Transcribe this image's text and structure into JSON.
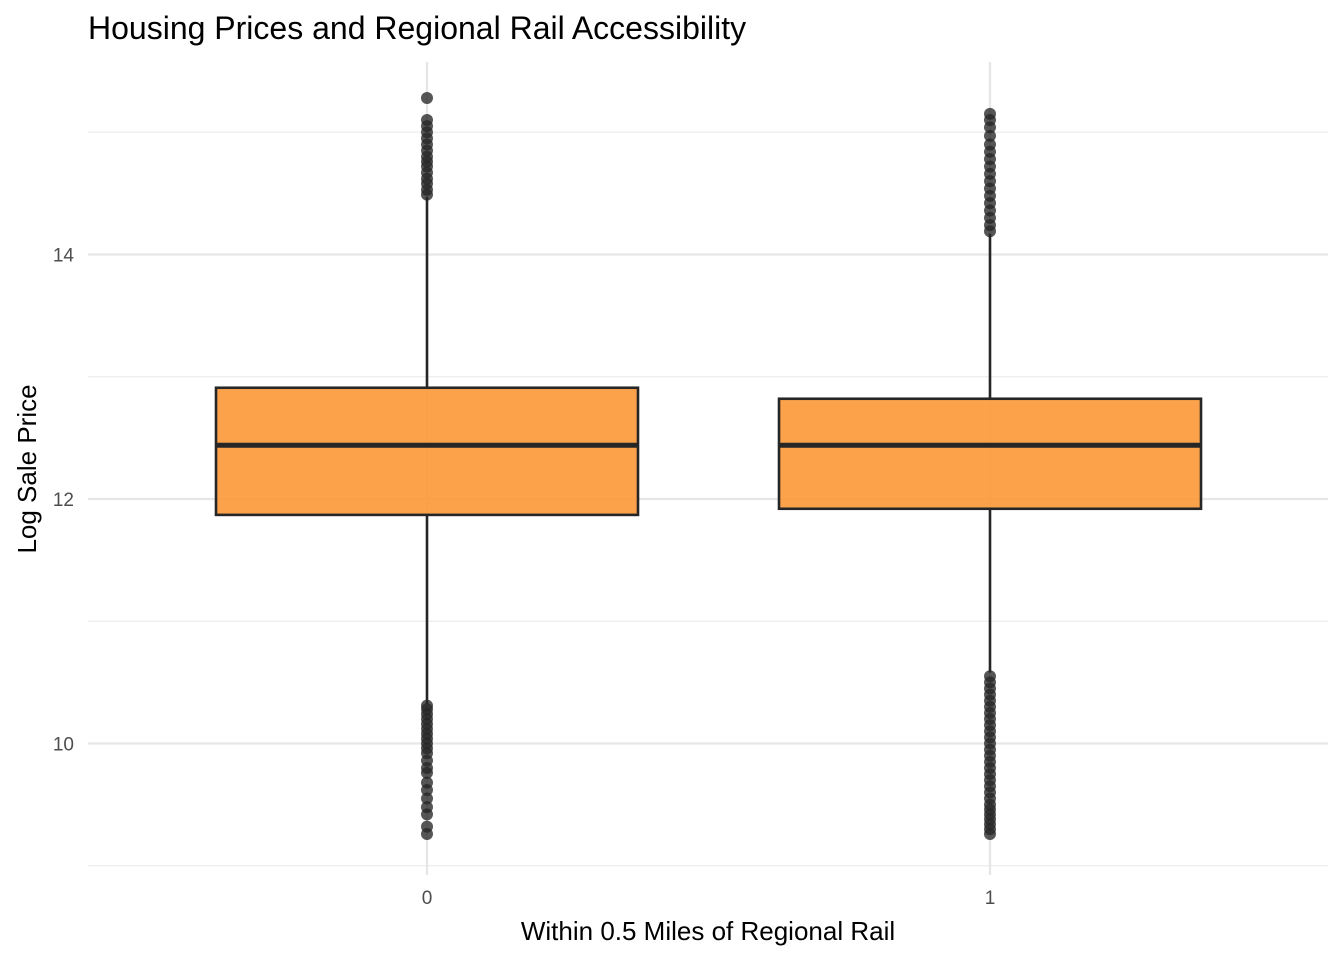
{
  "chart_data": {
    "type": "boxplot",
    "title": "Housing Prices and Regional Rail Accessibility",
    "xlabel": "Within 0.5 Miles of Regional Rail",
    "ylabel": "Log Sale Price",
    "categories": [
      "0",
      "1"
    ],
    "ylim": [
      9.0,
      15.55
    ],
    "y_major_ticks": [
      10,
      12,
      14
    ],
    "y_minor_ticks": [
      9,
      11,
      13,
      15
    ],
    "fill_color": "#fb9a3c",
    "line_color": "#262626",
    "boxes": [
      {
        "category": "0",
        "q1": 11.87,
        "median": 12.44,
        "q3": 12.91,
        "whisker_low": 10.32,
        "whisker_high": 14.47,
        "outliers": [
          9.26,
          9.32,
          9.42,
          9.48,
          9.55,
          9.62,
          9.68,
          9.76,
          9.8,
          9.86,
          9.92,
          9.96,
          10.0,
          10.04,
          10.08,
          10.12,
          10.16,
          10.2,
          10.24,
          10.28,
          10.31,
          14.49,
          14.53,
          14.58,
          14.62,
          14.67,
          14.72,
          14.76,
          14.8,
          14.85,
          14.9,
          14.95,
          15.0,
          15.05,
          15.1,
          15.28
        ]
      },
      {
        "category": "1",
        "q1": 11.92,
        "median": 12.44,
        "q3": 12.82,
        "whisker_low": 10.58,
        "whisker_high": 14.17,
        "outliers": [
          9.26,
          9.3,
          9.34,
          9.38,
          9.42,
          9.46,
          9.5,
          9.55,
          9.6,
          9.65,
          9.7,
          9.75,
          9.8,
          9.85,
          9.9,
          9.95,
          10.0,
          10.05,
          10.1,
          10.15,
          10.2,
          10.25,
          10.3,
          10.35,
          10.4,
          10.45,
          10.5,
          10.55,
          14.19,
          14.24,
          14.3,
          14.36,
          14.42,
          14.48,
          14.54,
          14.6,
          14.66,
          14.72,
          14.78,
          14.84,
          14.9,
          14.97,
          15.04,
          15.1,
          15.15
        ]
      }
    ]
  }
}
